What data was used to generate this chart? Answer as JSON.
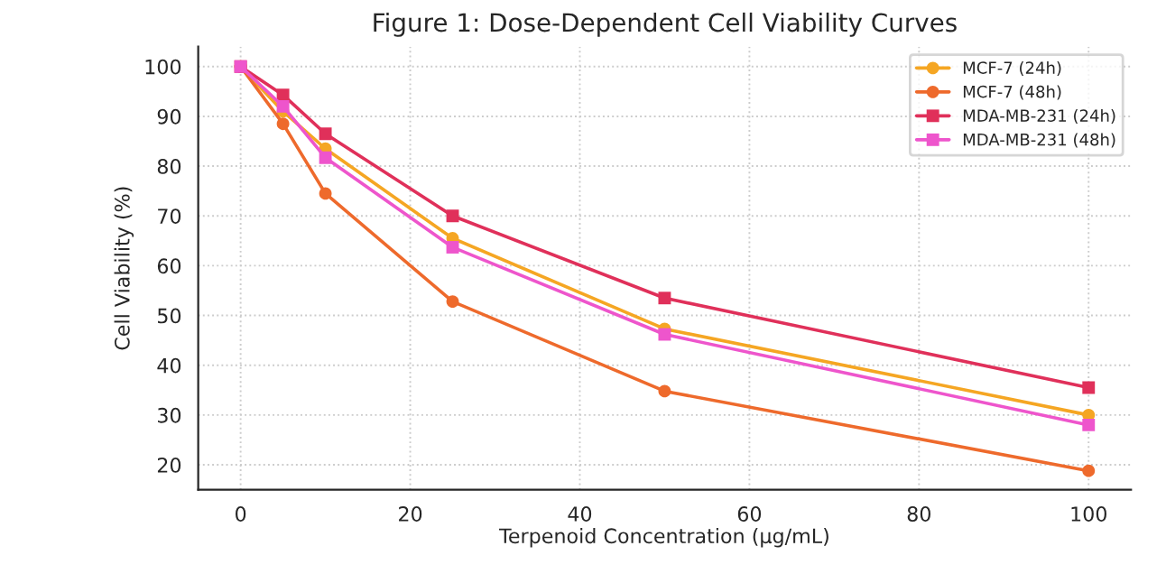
{
  "chart_data": {
    "type": "line",
    "title": "Figure 1: Dose-Dependent Cell Viability Curves",
    "xlabel": "Terpenoid Concentration (µg/mL)",
    "ylabel": "Cell Viability (%)",
    "x": [
      0,
      5,
      10,
      25,
      50,
      100
    ],
    "series": [
      {
        "name": "MCF-7 (24h)",
        "color": "#f5a623",
        "marker": "circle",
        "values": [
          100,
          91,
          83.5,
          65.5,
          47.3,
          30
        ]
      },
      {
        "name": "MCF-7 (48h)",
        "color": "#ee6a2c",
        "marker": "circle",
        "values": [
          100,
          88.5,
          74.5,
          52.8,
          34.8,
          18.8
        ]
      },
      {
        "name": "MDA-MB-231 (24h)",
        "color": "#e0305a",
        "marker": "square",
        "values": [
          100,
          94.3,
          86.5,
          70,
          53.5,
          35.5
        ]
      },
      {
        "name": "MDA-MB-231 (48h)",
        "color": "#ee55cc",
        "marker": "square",
        "values": [
          100,
          92,
          81.7,
          63.7,
          46.2,
          28
        ]
      }
    ],
    "xlim": [
      -5,
      105
    ],
    "ylim": [
      15,
      104
    ],
    "xticks": [
      0,
      20,
      40,
      60,
      80,
      100
    ],
    "yticks": [
      20,
      30,
      40,
      50,
      60,
      70,
      80,
      90,
      100
    ],
    "grid": true,
    "legend": "top right",
    "line_style": "solid"
  }
}
